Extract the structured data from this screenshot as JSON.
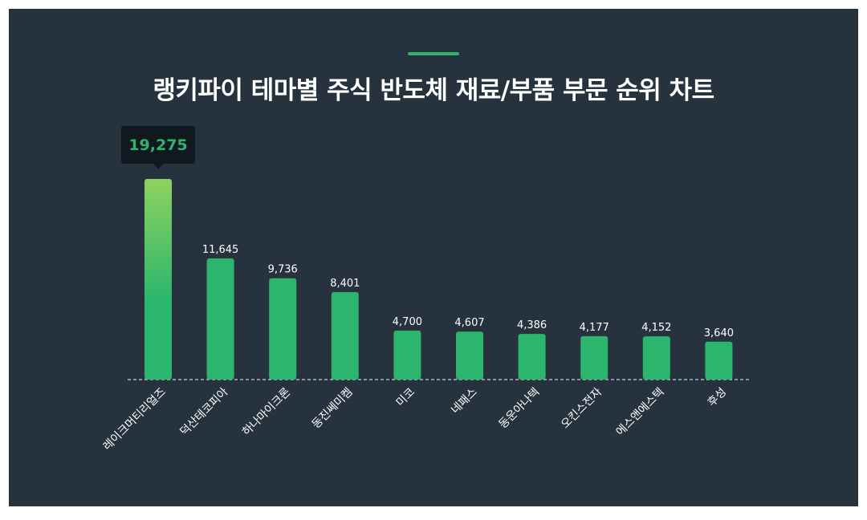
{
  "title": "랭키파이 테마별 주식 반도체 재료/부품 부문 순위 차트",
  "colors": {
    "background": "#26333f",
    "bar": "#2cb66d",
    "bar_top_highlight": "#8ed160",
    "accent": "#2cb66d",
    "tooltip_bg": "#101820",
    "tooltip_text": "#2cb66d",
    "label_text": "#ffffff",
    "baseline": "#c9cfd4"
  },
  "chart_data": {
    "type": "bar",
    "title": "랭키파이 테마별 주식 반도체 재료/부품 부문 순위 차트",
    "categories": [
      "레이크머티리얼즈",
      "덕산테코피아",
      "하나마이크론",
      "동진쎄미켐",
      "미코",
      "네패스",
      "동운아나텍",
      "오킨스전자",
      "에스앤에스텍",
      "후성"
    ],
    "values": [
      19275,
      11645,
      9736,
      8401,
      4700,
      4607,
      4386,
      4177,
      4152,
      3640
    ],
    "value_labels": [
      "19,275",
      "11,645",
      "9,736",
      "8,401",
      "4,700",
      "4,607",
      "4,386",
      "4,177",
      "4,152",
      "3,640"
    ],
    "highlight_index": 0,
    "ylim": [
      0,
      19275
    ],
    "grid": false,
    "legend": "none",
    "xlabel": "",
    "ylabel": ""
  }
}
